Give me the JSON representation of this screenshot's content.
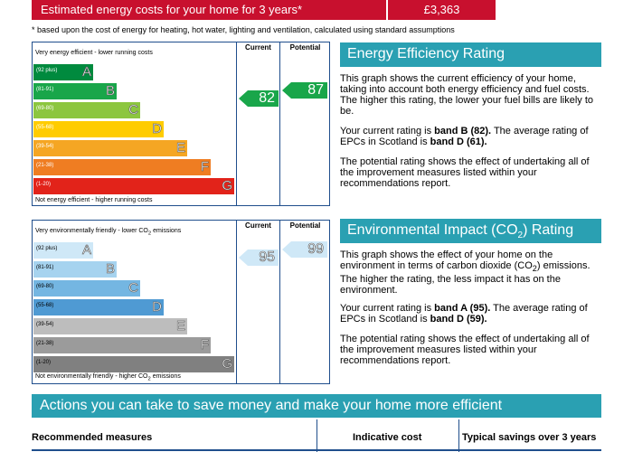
{
  "cost_banner": {
    "label": "Estimated energy costs for your home for 3 years*",
    "value": "£3,363"
  },
  "footnote": "* based upon the cost of energy for heating, hot water, lighting and ventilation, calculated using standard assumptions",
  "energy_chart": {
    "top_text": "Very energy efficient - lower running costs",
    "bottom_text": "Not energy efficient - higher running costs",
    "col_current": "Current",
    "col_potential": "Potential",
    "bands": [
      {
        "range": "(92 plus)",
        "letter": "A",
        "color": "#008a3e"
      },
      {
        "range": "(81-91)",
        "letter": "B",
        "color": "#19a64a"
      },
      {
        "range": "(69-80)",
        "letter": "C",
        "color": "#8cc63f"
      },
      {
        "range": "(55-68)",
        "letter": "D",
        "color": "#ffcc00"
      },
      {
        "range": "(39-54)",
        "letter": "E",
        "color": "#f5a623"
      },
      {
        "range": "(21-38)",
        "letter": "F",
        "color": "#ef7d22"
      },
      {
        "range": "(1-20)",
        "letter": "G",
        "color": "#e2231a"
      }
    ],
    "current": {
      "value": "82",
      "band_index": 1,
      "color": "#19a64a"
    },
    "potential": {
      "value": "87",
      "band_index": 1,
      "color": "#19a64a"
    }
  },
  "env_chart": {
    "top_text_pre": "Very environmentally friendly - lower CO",
    "top_text_sub": "2",
    "top_text_post": " emissions",
    "bottom_text_pre": "Not environmentally friendly - higher CO",
    "bottom_text_sub": "2",
    "bottom_text_post": " emissions",
    "col_current": "Current",
    "col_potential": "Potential",
    "bands": [
      {
        "range": "(92 plus)",
        "letter": "A",
        "color": "#cfe8f7"
      },
      {
        "range": "(81-91)",
        "letter": "B",
        "color": "#a6d3ef"
      },
      {
        "range": "(69-80)",
        "letter": "C",
        "color": "#74b6e2"
      },
      {
        "range": "(55-68)",
        "letter": "D",
        "color": "#4f9ad3"
      },
      {
        "range": "(39-54)",
        "letter": "E",
        "color": "#bdbdbd"
      },
      {
        "range": "(21-38)",
        "letter": "F",
        "color": "#9b9b9b"
      },
      {
        "range": "(1-20)",
        "letter": "G",
        "color": "#808080"
      }
    ],
    "current": {
      "value": "95",
      "band_index": 0,
      "color": "#cfe8f7"
    },
    "potential": {
      "value": "99",
      "band_index": 0,
      "color": "#cfe8f7"
    }
  },
  "eer": {
    "title": "Energy Efficiency Rating",
    "p1": "This graph shows the current efficiency of your home, taking into account both energy efficiency and fuel costs. The higher this rating, the lower your fuel bills are likely to be.",
    "p2_pre": "Your current rating is ",
    "p2_bold1": "band B (82).",
    "p2_mid": " The average rating of EPCs in Scotland is ",
    "p2_bold2": "band D (61).",
    "p3": "The potential rating shows the effect of undertaking all of the improvement measures listed within your recommendations report."
  },
  "eir": {
    "title_pre": "Environmental Impact (CO",
    "title_sub": "2",
    "title_post": ") Rating",
    "p1_pre": "This graph shows the effect of your home on the environment in terms of carbon dioxide (CO",
    "p1_sub": "2",
    "p1_post": ") emissions. The higher the rating, the less impact it has on the environment.",
    "p2_pre": "Your current rating is ",
    "p2_bold1": "band A (95).",
    "p2_mid": " The average rating of EPCs in Scotland is ",
    "p2_bold2": "band D (59).",
    "p3": "The potential rating shows the effect of undertaking all of the improvement measures listed within your recommendations report."
  },
  "actions": {
    "title": "Actions you can take to save money and make your home more efficient",
    "col_measures": "Recommended measures",
    "col_cost": "Indicative cost",
    "col_savings": "Typical savings over 3 years"
  }
}
